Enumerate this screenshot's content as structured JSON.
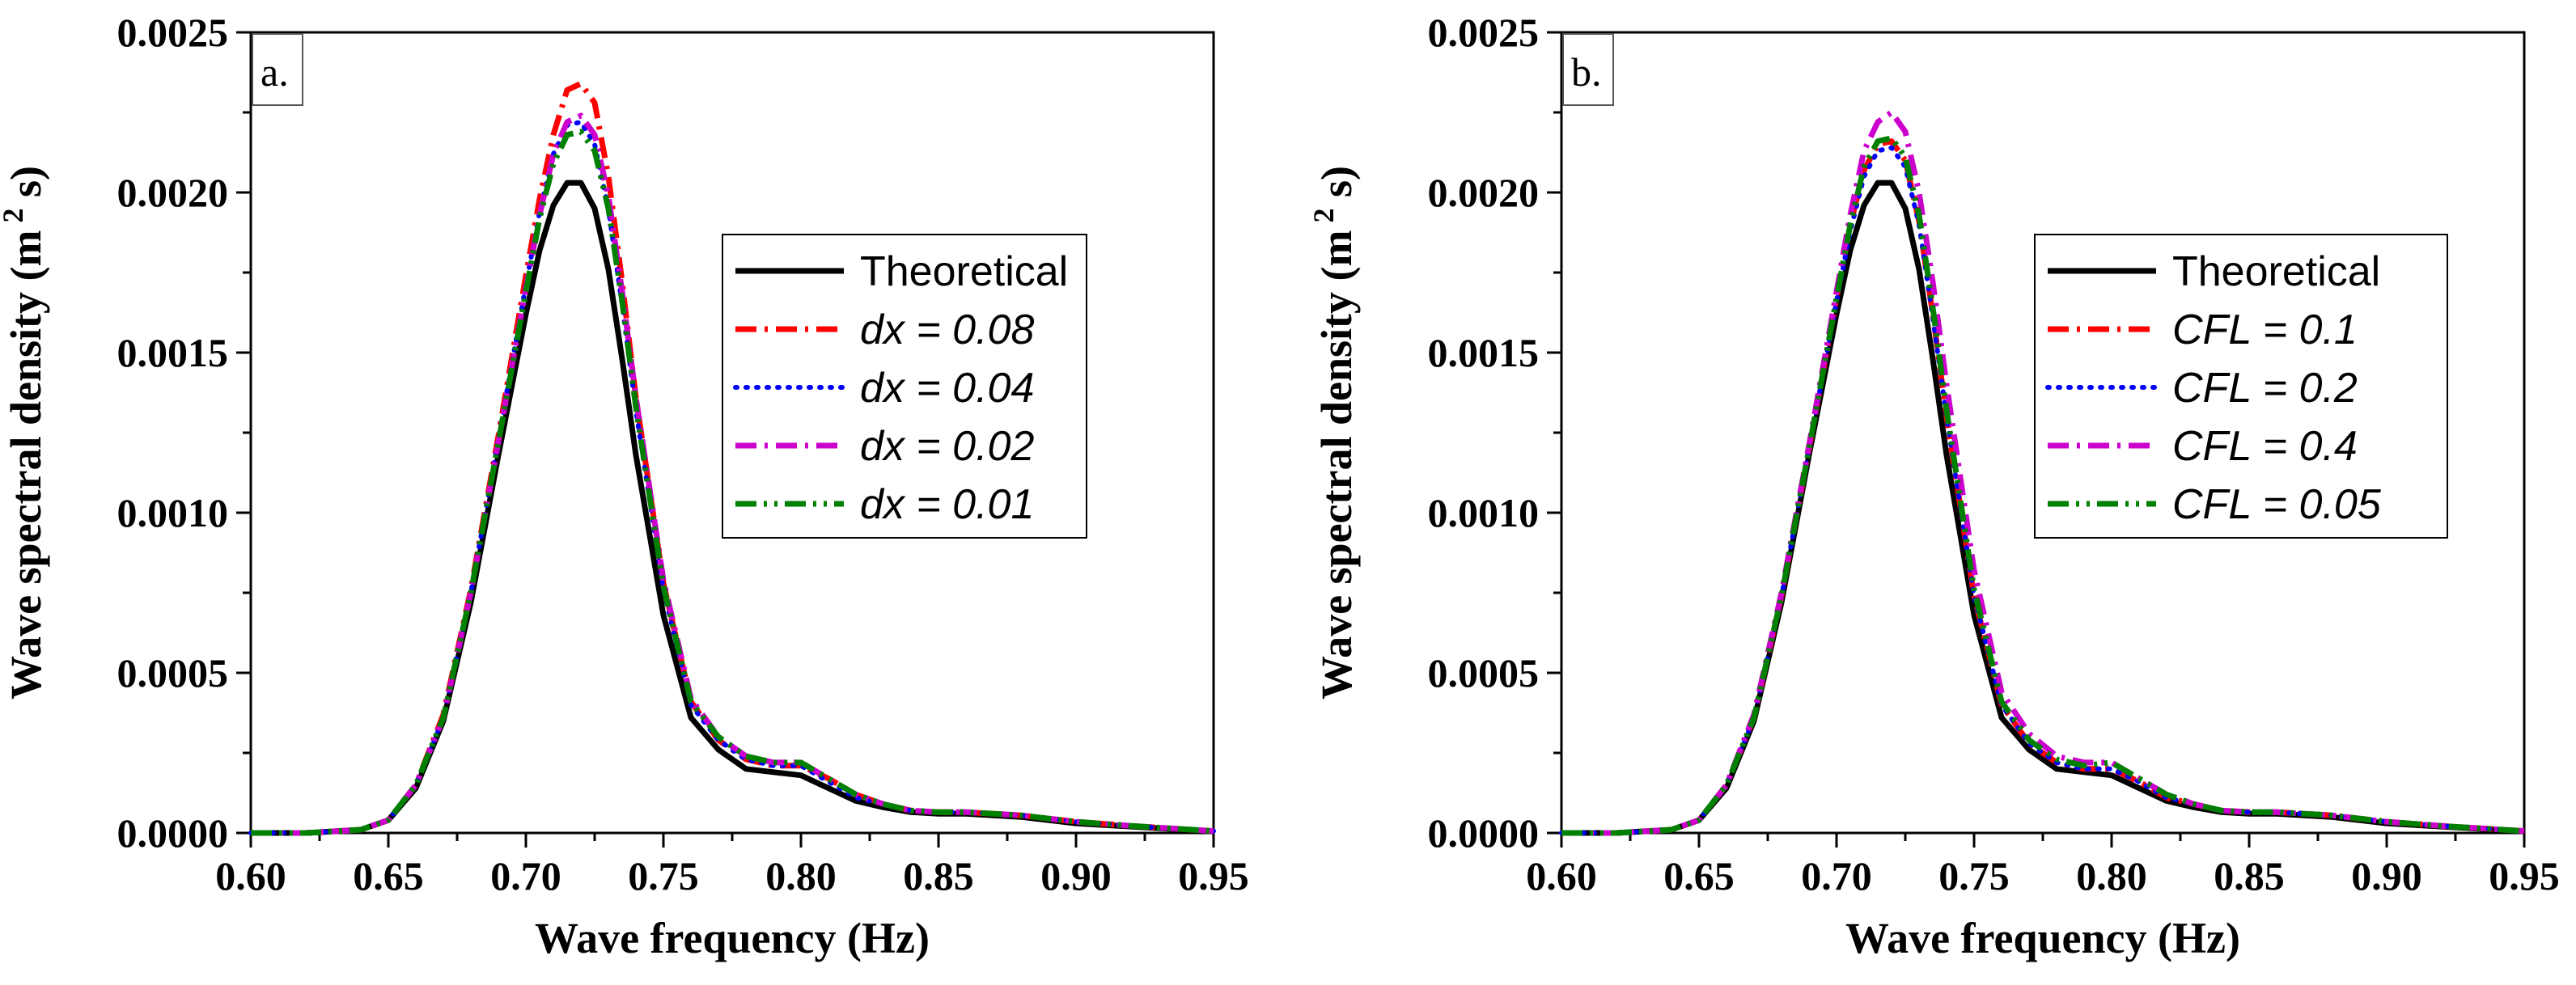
{
  "chart_data": [
    {
      "type": "line",
      "panel_label": "a.",
      "xlabel": "Wave frequency (Hz)",
      "ylabel": "Wave spectral density (m",
      "ylabel_sup": "2",
      "ylabel_tail": " s)",
      "xlim": [
        0.6,
        0.95
      ],
      "ylim": [
        0.0,
        0.0025
      ],
      "xticks": [
        "0.60",
        "0.65",
        "0.70",
        "0.75",
        "0.80",
        "0.85",
        "0.90",
        "0.95"
      ],
      "yticks": [
        "0.0000",
        "0.0005",
        "0.0010",
        "0.0015",
        "0.0020",
        "0.0025"
      ],
      "legend_position": "right",
      "x": [
        0.6,
        0.62,
        0.64,
        0.65,
        0.66,
        0.67,
        0.68,
        0.69,
        0.7,
        0.705,
        0.71,
        0.715,
        0.72,
        0.725,
        0.73,
        0.735,
        0.74,
        0.75,
        0.76,
        0.77,
        0.78,
        0.79,
        0.8,
        0.81,
        0.82,
        0.83,
        0.84,
        0.85,
        0.86,
        0.87,
        0.88,
        0.89,
        0.9,
        0.92,
        0.95
      ],
      "series": [
        {
          "name": "Theoretical",
          "style": "solid",
          "color": "#000000",
          "width": 7,
          "values": [
            0,
            0,
            1e-05,
            4e-05,
            0.00014,
            0.00035,
            0.00072,
            0.00118,
            0.00162,
            0.00182,
            0.00196,
            0.00203,
            0.00203,
            0.00195,
            0.00176,
            0.00148,
            0.00118,
            0.00068,
            0.00036,
            0.00026,
            0.0002,
            0.00019,
            0.00018,
            0.00014,
            0.0001,
            8e-05,
            6.5e-05,
            6e-05,
            6e-05,
            5.5e-05,
            5e-05,
            4e-05,
            3e-05,
            2e-05,
            5e-06
          ]
        },
        {
          "name": "dx = 0.08",
          "style": "dashdot",
          "color": "#ff0000",
          "width": 7,
          "values": [
            0,
            0,
            1e-05,
            4e-05,
            0.00015,
            0.00037,
            0.00076,
            0.00124,
            0.00174,
            0.00198,
            0.00218,
            0.00232,
            0.00234,
            0.00228,
            0.00205,
            0.00172,
            0.00136,
            0.00078,
            0.00041,
            0.00029,
            0.00023,
            0.00021,
            0.00021,
            0.00017,
            0.00012,
            9e-05,
            7e-05,
            6.5e-05,
            6.5e-05,
            6e-05,
            5.5e-05,
            4.5e-05,
            3.5e-05,
            2.2e-05,
            6e-06
          ]
        },
        {
          "name": "dx = 0.04",
          "style": "dotted",
          "color": "#0000ff",
          "width": 6,
          "values": [
            0,
            0,
            1e-05,
            4e-05,
            0.00015,
            0.00036,
            0.00075,
            0.00123,
            0.00171,
            0.00194,
            0.00212,
            0.00221,
            0.00222,
            0.00215,
            0.00195,
            0.00165,
            0.00132,
            0.00076,
            0.0004,
            0.00029,
            0.00023,
            0.00021,
            0.00021,
            0.00016,
            0.00011,
            9e-05,
            7e-05,
            6.5e-05,
            6.5e-05,
            6e-05,
            5.5e-05,
            4.5e-05,
            3.5e-05,
            2.2e-05,
            6e-06
          ]
        },
        {
          "name": "dx = 0.02",
          "style": "dashdot",
          "color": "#cc00cc",
          "width": 7,
          "values": [
            0,
            0,
            1e-05,
            4e-05,
            0.00015,
            0.00036,
            0.00075,
            0.00122,
            0.0017,
            0.00193,
            0.00212,
            0.00222,
            0.00224,
            0.00218,
            0.00199,
            0.00169,
            0.00136,
            0.00079,
            0.00042,
            0.0003,
            0.00024,
            0.00022,
            0.00022,
            0.00017,
            0.00012,
            9e-05,
            7e-05,
            6.5e-05,
            6.5e-05,
            6e-05,
            5.5e-05,
            4.5e-05,
            3.5e-05,
            2.2e-05,
            6e-06
          ]
        },
        {
          "name": "dx = 0.01",
          "style": "dashdotdot",
          "color": "#008000",
          "width": 7,
          "values": [
            0,
            0,
            1e-05,
            4e-05,
            0.00015,
            0.00036,
            0.00075,
            0.00122,
            0.00169,
            0.00192,
            0.00209,
            0.00218,
            0.00219,
            0.00213,
            0.00195,
            0.00166,
            0.00133,
            0.00077,
            0.00041,
            0.0003,
            0.00024,
            0.00022,
            0.00022,
            0.00017,
            0.00012,
            9e-05,
            7e-05,
            6.5e-05,
            6.5e-05,
            6e-05,
            5.5e-05,
            4.5e-05,
            3.5e-05,
            2.2e-05,
            6e-06
          ]
        }
      ]
    },
    {
      "type": "line",
      "panel_label": "b.",
      "xlabel": "Wave frequency (Hz)",
      "ylabel": "Wave spectral density (m",
      "ylabel_sup": "2",
      "ylabel_tail": " s)",
      "xlim": [
        0.6,
        0.95
      ],
      "ylim": [
        0.0,
        0.0025
      ],
      "xticks": [
        "0.60",
        "0.65",
        "0.70",
        "0.75",
        "0.80",
        "0.85",
        "0.90",
        "0.95"
      ],
      "yticks": [
        "0.0000",
        "0.0005",
        "0.0010",
        "0.0015",
        "0.0020",
        "0.0025"
      ],
      "legend_position": "right",
      "x": [
        0.6,
        0.62,
        0.64,
        0.65,
        0.66,
        0.67,
        0.68,
        0.69,
        0.7,
        0.705,
        0.71,
        0.715,
        0.72,
        0.725,
        0.73,
        0.735,
        0.74,
        0.75,
        0.76,
        0.77,
        0.78,
        0.79,
        0.8,
        0.81,
        0.82,
        0.83,
        0.84,
        0.85,
        0.86,
        0.87,
        0.88,
        0.89,
        0.9,
        0.92,
        0.95
      ],
      "series": [
        {
          "name": "Theoretical",
          "style": "solid",
          "color": "#000000",
          "width": 7,
          "values": [
            0,
            0,
            1e-05,
            4e-05,
            0.00014,
            0.00035,
            0.00072,
            0.00118,
            0.00162,
            0.00182,
            0.00196,
            0.00203,
            0.00203,
            0.00195,
            0.00176,
            0.00148,
            0.00118,
            0.00068,
            0.00036,
            0.00026,
            0.0002,
            0.00019,
            0.00018,
            0.00014,
            0.0001,
            8e-05,
            6.5e-05,
            6e-05,
            6e-05,
            5.5e-05,
            5e-05,
            4e-05,
            3e-05,
            2e-05,
            5e-06
          ]
        },
        {
          "name": "CFL = 0.1",
          "style": "dashdot",
          "color": "#ff0000",
          "width": 7,
          "values": [
            0,
            0,
            1e-05,
            4e-05,
            0.00015,
            0.00036,
            0.00074,
            0.0012,
            0.00167,
            0.0019,
            0.00207,
            0.00215,
            0.00216,
            0.0021,
            0.00191,
            0.00162,
            0.0013,
            0.00074,
            0.0004,
            0.00028,
            0.00022,
            0.0002,
            0.0002,
            0.00016,
            0.00011,
            9e-05,
            7e-05,
            6.5e-05,
            6.5e-05,
            6e-05,
            5.5e-05,
            4.5e-05,
            3.5e-05,
            2.2e-05,
            6e-06
          ]
        },
        {
          "name": "CFL = 0.2",
          "style": "dotted",
          "color": "#0000ff",
          "width": 6,
          "values": [
            0,
            0,
            1e-05,
            4e-05,
            0.00015,
            0.00036,
            0.00074,
            0.0012,
            0.00166,
            0.00188,
            0.00205,
            0.00213,
            0.00214,
            0.00208,
            0.0019,
            0.00161,
            0.0013,
            0.00074,
            0.0004,
            0.00028,
            0.00022,
            0.0002,
            0.0002,
            0.00016,
            0.00011,
            9e-05,
            7e-05,
            6.5e-05,
            6.5e-05,
            6e-05,
            5.5e-05,
            4.5e-05,
            3.5e-05,
            2.2e-05,
            6e-06
          ]
        },
        {
          "name": "CFL = 0.4",
          "style": "dashdot",
          "color": "#cc00cc",
          "width": 7,
          "values": [
            0,
            0,
            1e-05,
            4e-05,
            0.00015,
            0.00037,
            0.00075,
            0.00121,
            0.00169,
            0.00193,
            0.00213,
            0.00222,
            0.00225,
            0.00219,
            0.002,
            0.00172,
            0.0014,
            0.00082,
            0.00044,
            0.00031,
            0.00024,
            0.00022,
            0.00022,
            0.00017,
            0.00012,
            9e-05,
            7e-05,
            6.5e-05,
            6.5e-05,
            6e-05,
            5.5e-05,
            4.5e-05,
            3.5e-05,
            2.2e-05,
            6e-06
          ]
        },
        {
          "name": "CFL = 0.05",
          "style": "dashdotdot",
          "color": "#008000",
          "width": 7,
          "values": [
            0,
            0,
            1e-05,
            4e-05,
            0.00015,
            0.00036,
            0.00074,
            0.0012,
            0.00167,
            0.0019,
            0.00208,
            0.00216,
            0.00217,
            0.00211,
            0.00193,
            0.00164,
            0.00132,
            0.00076,
            0.00041,
            0.00029,
            0.00023,
            0.00021,
            0.00022,
            0.00017,
            0.00012,
            9e-05,
            7e-05,
            6.5e-05,
            6.5e-05,
            6e-05,
            5.5e-05,
            4.5e-05,
            3.5e-05,
            2.2e-05,
            6e-06
          ]
        }
      ]
    }
  ]
}
